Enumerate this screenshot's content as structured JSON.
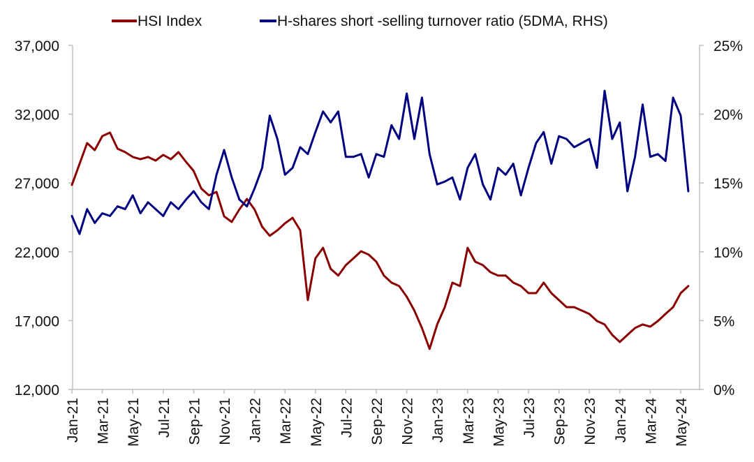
{
  "chart_data": {
    "type": "line",
    "title": "",
    "legend": {
      "placement": "top",
      "entries": [
        "HSI Index",
        "H-shares short -selling turnover ratio (5DMA, RHS)"
      ]
    },
    "x_tick_labels": [
      "Jan-21",
      "Mar-21",
      "May-21",
      "Jul-21",
      "Sep-21",
      "Nov-21",
      "Jan-22",
      "Mar-22",
      "May-22",
      "Jul-22",
      "Sep-22",
      "Nov-22",
      "Jan-23",
      "Mar-23",
      "May-23",
      "Jul-23",
      "Sep-23",
      "Nov-23",
      "Jan-24",
      "Mar-24",
      "May-24"
    ],
    "x_unit": "months since Jan-21",
    "x_step": 0.5,
    "xlim": [
      0,
      40.6
    ],
    "y_left": {
      "label": "",
      "ylim": [
        12000,
        37000
      ],
      "ticks": [
        12000,
        17000,
        22000,
        27000,
        32000,
        37000
      ],
      "tick_labels": [
        "12,000",
        "17,000",
        "22,000",
        "27,000",
        "32,000",
        "37,000"
      ]
    },
    "y_right": {
      "label": "",
      "ylim": [
        0,
        25
      ],
      "ticks": [
        0,
        5,
        10,
        15,
        20,
        25
      ],
      "tick_labels": [
        "0%",
        "5%",
        "10%",
        "15%",
        "20%",
        "25%"
      ]
    },
    "grid": false,
    "series": [
      {
        "name": "HSI Index",
        "axis": "left",
        "color": "#8B0000",
        "values": [
          26860,
          28380,
          29900,
          29390,
          30410,
          30660,
          29490,
          29240,
          28890,
          28730,
          28890,
          28630,
          29040,
          28730,
          29240,
          28530,
          27870,
          26600,
          26100,
          26350,
          24580,
          24170,
          25080,
          25840,
          25080,
          23820,
          23160,
          23560,
          24070,
          24470,
          23560,
          18490,
          21530,
          22290,
          20770,
          20270,
          21030,
          21530,
          22040,
          21790,
          21280,
          20270,
          19760,
          19510,
          18740,
          17730,
          16460,
          14940,
          16720,
          17980,
          19760,
          19510,
          22290,
          21280,
          21030,
          20520,
          20270,
          20270,
          19760,
          19510,
          19000,
          19000,
          19760,
          19000,
          18490,
          17980,
          17980,
          17730,
          17480,
          16970,
          16720,
          15960,
          15450,
          15960,
          16460,
          16720,
          16560,
          16970,
          17480,
          17980,
          19000,
          19510
        ]
      },
      {
        "name": "H-shares short -selling turnover ratio (5DMA, RHS)",
        "axis": "right",
        "color": "#000080",
        "values": [
          12.6,
          11.3,
          13.1,
          12.1,
          12.8,
          12.6,
          13.3,
          13.1,
          14.1,
          12.8,
          13.6,
          13.1,
          12.6,
          13.6,
          13.1,
          13.8,
          14.4,
          13.6,
          13.1,
          15.6,
          17.4,
          15.4,
          13.8,
          13.3,
          14.6,
          16.1,
          19.9,
          18.2,
          15.6,
          16.1,
          17.6,
          17.1,
          18.7,
          20.2,
          19.4,
          20.2,
          16.9,
          16.9,
          17.1,
          15.4,
          17.1,
          16.9,
          19.2,
          18.2,
          21.5,
          18.2,
          21.2,
          17.1,
          14.9,
          15.1,
          15.4,
          13.8,
          16.1,
          17.1,
          14.9,
          13.8,
          16.1,
          15.6,
          16.4,
          14.1,
          16.1,
          17.9,
          18.7,
          16.4,
          18.4,
          18.2,
          17.6,
          17.9,
          18.2,
          16.1,
          21.7,
          18.2,
          19.4,
          14.4,
          16.9,
          20.7,
          16.9,
          17.1,
          16.6,
          21.2,
          19.9,
          14.4
        ]
      }
    ]
  }
}
